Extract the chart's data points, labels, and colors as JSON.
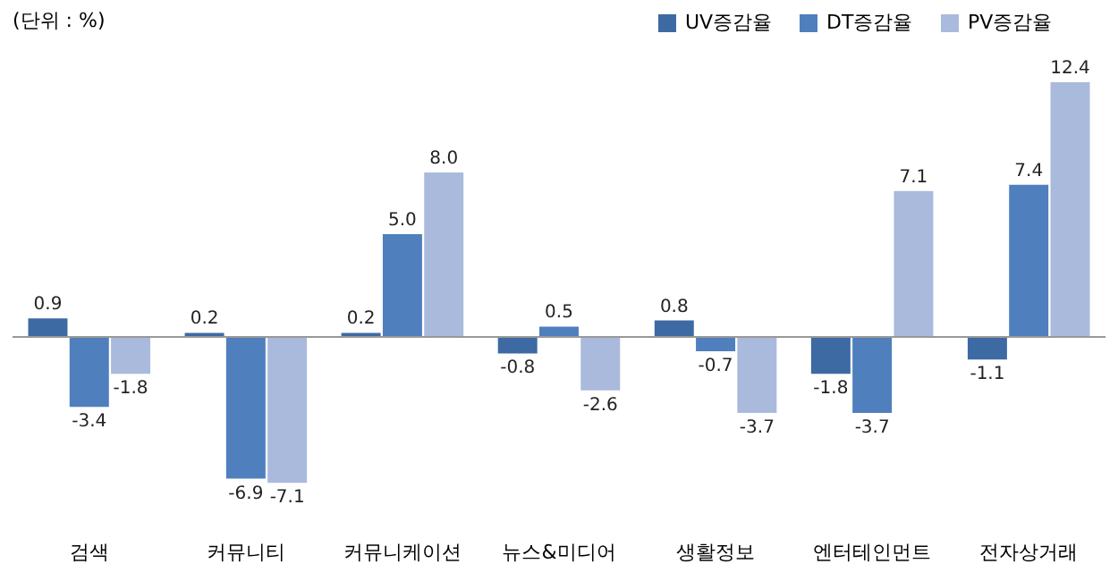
{
  "chart_data": {
    "type": "bar",
    "annotations": [
      "(단위 : %)"
    ],
    "categories": [
      "검색",
      "커뮤니티",
      "커뮤니케이션",
      "뉴스&미디어",
      "생활정보",
      "엔터테인먼트",
      "전자상거래"
    ],
    "series": [
      {
        "name": "UV증감율",
        "color": "#3d6aa3",
        "values": [
          0.9,
          0.2,
          0.2,
          -0.8,
          0.8,
          -1.8,
          -1.1
        ],
        "value_labels": [
          "0.9",
          "0.2",
          "0.2",
          "-0.8",
          "0.8",
          "-1.8",
          "-1.1"
        ]
      },
      {
        "name": "DT증감율",
        "color": "#4f7fbd",
        "values": [
          -3.4,
          -6.9,
          5.0,
          0.5,
          -0.7,
          -3.7,
          7.4
        ],
        "value_labels": [
          "-3.4",
          "-6.9",
          "5.0",
          "0.5",
          "-0.7",
          "-3.7",
          "7.4"
        ]
      },
      {
        "name": "PV증감율",
        "color": "#a9badc",
        "values": [
          -1.8,
          -7.1,
          8.0,
          -2.6,
          -3.7,
          7.1,
          12.4
        ],
        "value_labels": [
          "-1.8",
          "-7.1",
          "8.0",
          "-2.6",
          "-3.7",
          "7.1",
          "12.4"
        ]
      }
    ],
    "legend": "top right"
  }
}
